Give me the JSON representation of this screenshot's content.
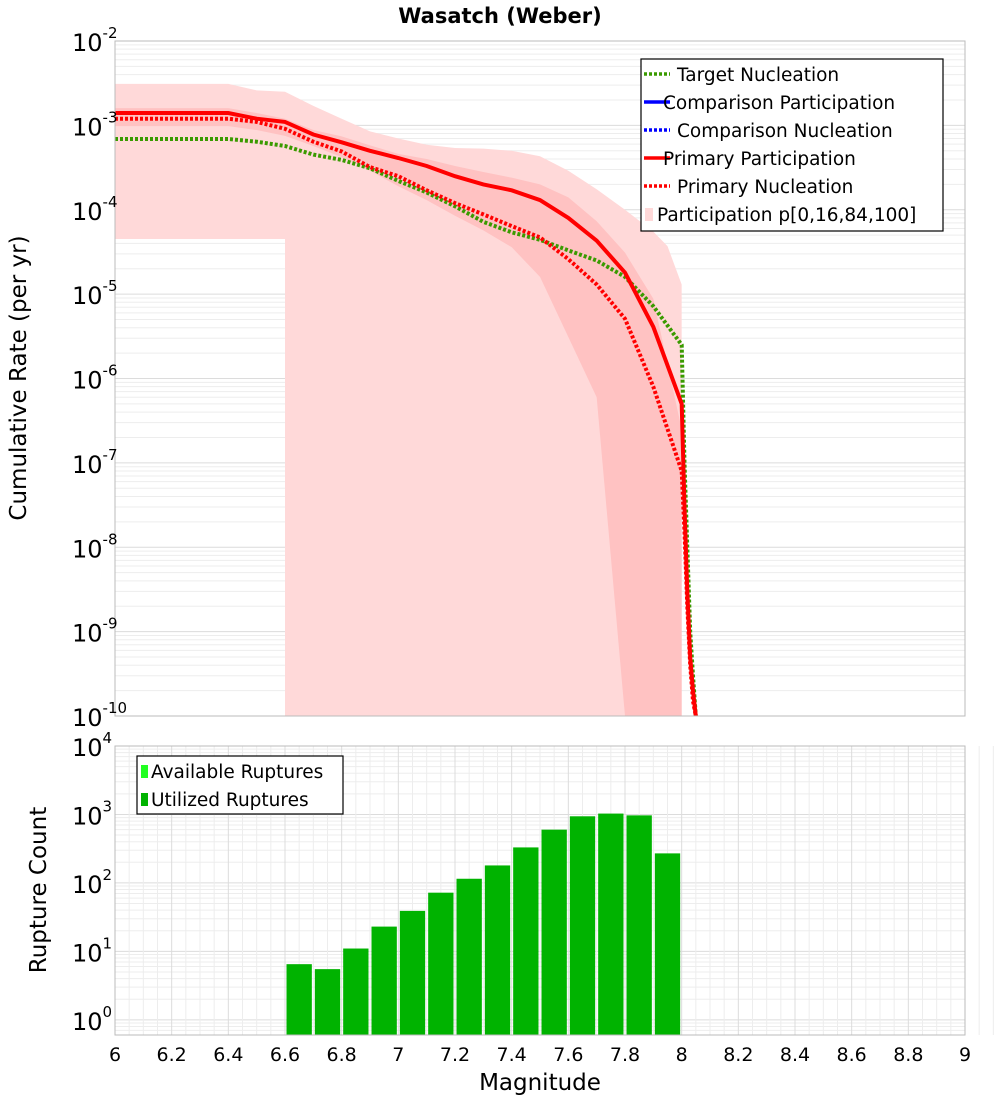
{
  "chart_data": [
    {
      "type": "line",
      "title": "Wasatch (Weber)",
      "xlabel": "",
      "ylabel": "Cumulative Rate (per yr)",
      "xlim": [
        6,
        9
      ],
      "ylim": [
        1e-10,
        0.01
      ],
      "yscale": "log",
      "grid": true,
      "legend_position": "top-right",
      "x_ticks": [
        6,
        6.2,
        6.4,
        6.6,
        6.8,
        7,
        7.2,
        7.4,
        7.6,
        7.8,
        8,
        8.2,
        8.4,
        8.6,
        8.8,
        9
      ],
      "y_tick_exponents": [
        -10,
        -9,
        -8,
        -7,
        -6,
        -5,
        -4,
        -3,
        -2
      ],
      "series": [
        {
          "name": "Target Nucleation",
          "style": "dotted",
          "color": "#3a9a00",
          "x": [
            6.0,
            6.1,
            6.2,
            6.3,
            6.4,
            6.5,
            6.6,
            6.7,
            6.8,
            6.9,
            7.0,
            7.1,
            7.2,
            7.3,
            7.4,
            7.5,
            7.6,
            7.7,
            7.8,
            7.9,
            8.0,
            8.01,
            8.02,
            8.03,
            8.04,
            8.05
          ],
          "y": [
            0.00069,
            0.00069,
            0.00069,
            0.00069,
            0.00069,
            0.00064,
            0.00057,
            0.00045,
            0.00039,
            0.00031,
            0.00022,
            0.00016,
            0.00011,
            7.2e-05,
            5.4e-05,
            4.4e-05,
            3.3e-05,
            2.5e-05,
            1.6e-05,
            7.2e-06,
            2.5e-06,
            1e-07,
            1e-08,
            1e-09,
            3e-10,
            1e-10
          ]
        },
        {
          "name": "Comparison Participation",
          "style": "solid",
          "color": "#0000ff",
          "x": [],
          "y": []
        },
        {
          "name": "Comparison Nucleation",
          "style": "dotted",
          "color": "#0000ff",
          "x": [],
          "y": []
        },
        {
          "name": "Primary Participation",
          "style": "solid",
          "color": "#ff0000",
          "x": [
            6.0,
            6.1,
            6.2,
            6.3,
            6.4,
            6.5,
            6.6,
            6.7,
            6.8,
            6.9,
            7.0,
            7.1,
            7.2,
            7.3,
            7.4,
            7.5,
            7.6,
            7.7,
            7.8,
            7.9,
            8.0,
            8.01,
            8.02,
            8.03,
            8.04,
            8.05
          ],
          "y": [
            0.0014,
            0.0014,
            0.0014,
            0.0014,
            0.0014,
            0.0012,
            0.0011,
            0.00078,
            0.00063,
            0.0005,
            0.00041,
            0.00033,
            0.00025,
            0.0002,
            0.00017,
            0.00013,
            8e-05,
            4.3e-05,
            1.8e-05,
            4.1e-06,
            5e-07,
            3e-08,
            3e-09,
            5e-10,
            2e-10,
            1e-10
          ]
        },
        {
          "name": "Primary Nucleation",
          "style": "dotted",
          "color": "#ff0000",
          "x": [
            6.0,
            6.1,
            6.2,
            6.3,
            6.4,
            6.5,
            6.6,
            6.7,
            6.8,
            6.9,
            7.0,
            7.1,
            7.2,
            7.3,
            7.4,
            7.5,
            7.6,
            7.7,
            7.8,
            7.9,
            8.0,
            8.01,
            8.02,
            8.03,
            8.04,
            8.05
          ],
          "y": [
            0.0012,
            0.0012,
            0.0012,
            0.0012,
            0.0012,
            0.0011,
            0.00091,
            0.00064,
            0.00049,
            0.00032,
            0.00025,
            0.00017,
            0.00012,
            8.8e-05,
            6.4e-05,
            4.7e-05,
            2.6e-05,
            1.3e-05,
            5.1e-06,
            8e-07,
            8e-08,
            1.5e-08,
            2e-09,
            4e-10,
            1.5e-10,
            1e-10
          ]
        }
      ],
      "bands": [
        {
          "name": "Participation p[0,16,84,100]",
          "color": "#ffd9d9",
          "x": [
            6.0,
            6.2,
            6.4,
            6.5,
            6.6,
            6.7,
            6.8,
            6.9,
            7.0,
            7.1,
            7.2,
            7.3,
            7.4,
            7.5,
            7.6,
            7.7,
            7.8,
            7.9,
            7.95,
            8.0
          ],
          "upper": [
            0.0031,
            0.0031,
            0.0031,
            0.0026,
            0.0025,
            0.0017,
            0.0012,
            0.00085,
            0.0007,
            0.00059,
            0.00054,
            0.00053,
            0.0005,
            0.00043,
            0.00029,
            0.000175,
            0.0001,
            5.5e-05,
            3.7e-05,
            1.3e-05
          ],
          "lower_points": [
            [
              6.0,
              4.5e-05
            ],
            [
              6.6,
              4.5e-05
            ],
            [
              6.6,
              1e-10
            ]
          ]
        },
        {
          "name": "",
          "color": "#ffc2c2",
          "x": [
            6.0,
            6.2,
            6.4,
            6.5,
            6.6,
            6.7,
            6.8,
            6.9,
            7.0,
            7.1,
            7.2,
            7.3,
            7.4,
            7.5,
            7.6,
            7.7,
            7.8,
            7.9,
            8.0
          ],
          "upper": [
            0.0016,
            0.0016,
            0.0016,
            0.0014,
            0.0012,
            0.00088,
            0.00074,
            0.00058,
            0.00046,
            0.0004,
            0.00033,
            0.00028,
            0.00024,
            0.0002,
            0.00014,
            7.3e-05,
            3.1e-05,
            8.8e-06,
            2.5e-07
          ],
          "lower": [
            0.00098,
            0.00098,
            0.00098,
            0.00088,
            0.00075,
            0.00057,
            0.00042,
            0.00029,
            0.00019,
            0.00013,
            8.5e-05,
            5.7e-05,
            3.6e-05,
            1.6e-05,
            3.1e-06,
            6e-07,
            1e-10,
            1e-10,
            1e-10
          ]
        }
      ]
    },
    {
      "type": "bar",
      "title": "",
      "xlabel": "Magnitude",
      "ylabel": "Rupture Count",
      "xlim": [
        6,
        9
      ],
      "ylim": [
        0.6,
        10000
      ],
      "yscale": "log",
      "grid": true,
      "legend_position": "top-left",
      "x_ticks": [
        "6",
        "6.2",
        "6.4",
        "6.6",
        "6.8",
        "7",
        "7.2",
        "7.4",
        "7.6",
        "7.8",
        "8",
        "8.2",
        "8.4",
        "8.6",
        "8.8",
        "9"
      ],
      "y_tick_exponents": [
        0,
        1,
        2,
        3,
        4
      ],
      "bin_width": 0.1,
      "bin_centers": [
        6.65,
        6.75,
        6.85,
        6.95,
        7.05,
        7.15,
        7.25,
        7.35,
        7.45,
        7.55,
        7.65,
        7.75,
        7.85,
        7.95
      ],
      "series": [
        {
          "name": "Available Ruptures",
          "color": "#22ff22",
          "values": [
            6.5,
            5.5,
            11,
            23,
            39,
            72,
            115,
            180,
            330,
            600,
            940,
            1030,
            970,
            270
          ]
        },
        {
          "name": "Utilized Ruptures",
          "color": "#00b300",
          "values": [
            6.5,
            5.5,
            11,
            23,
            39,
            72,
            115,
            180,
            330,
            600,
            940,
            1030,
            970,
            270
          ]
        }
      ]
    }
  ]
}
